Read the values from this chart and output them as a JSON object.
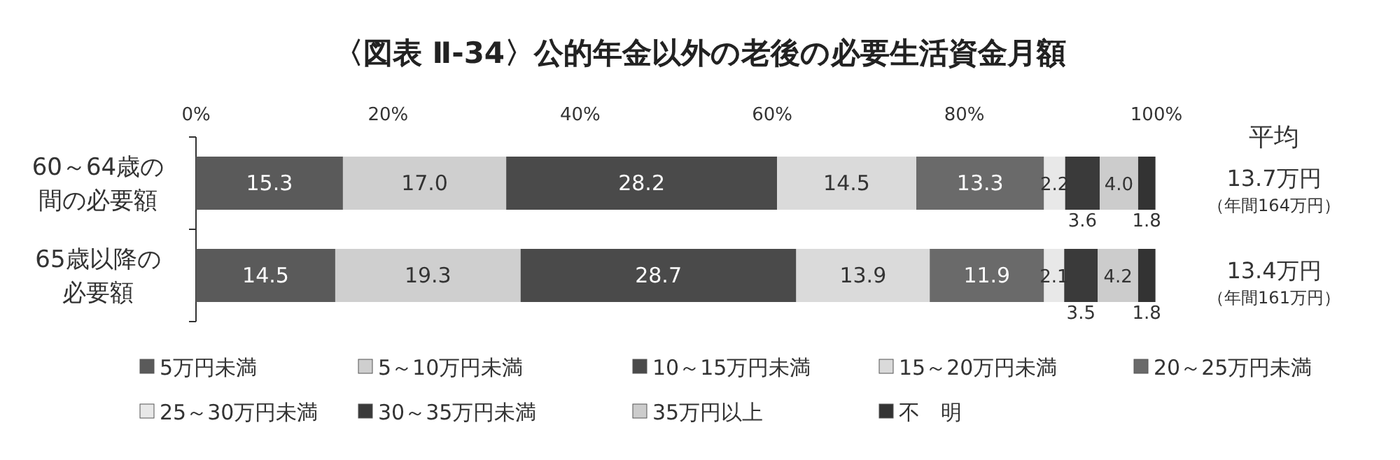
{
  "chart_data": {
    "type": "bar",
    "orientation": "horizontal",
    "stacked": true,
    "title": "〈図表 Ⅱ-34〉公的年金以外の老後の必要生活資金月額",
    "categories": [
      "60～64歳の間の必要額",
      "65歳以降の必要額"
    ],
    "series": [
      {
        "name": "5万円未満",
        "color": "#5a5a5a",
        "values": [
          15.3,
          14.5
        ],
        "value_labels": [
          "15.3",
          "14.5"
        ]
      },
      {
        "name": "5～10万円未満",
        "color": "#cfcfcf",
        "values": [
          17.0,
          19.3
        ],
        "value_labels": [
          "17.0",
          "19.3"
        ]
      },
      {
        "name": "10～15万円未満",
        "color": "#4a4a4a",
        "values": [
          28.2,
          28.7
        ],
        "value_labels": [
          "28.2",
          "28.7"
        ]
      },
      {
        "name": "15～20万円未満",
        "color": "#dadada",
        "values": [
          14.5,
          13.9
        ],
        "value_labels": [
          "14.5",
          "13.9"
        ]
      },
      {
        "name": "20～25万円未満",
        "color": "#6a6a6a",
        "values": [
          13.3,
          11.9
        ],
        "value_labels": [
          "13.3",
          "11.9"
        ]
      },
      {
        "name": "25～30万円未満",
        "color": "#e8e8e8",
        "values": [
          2.2,
          2.1
        ],
        "value_labels": [
          "2.2",
          "2.1"
        ]
      },
      {
        "name": "30～35万円未満",
        "color": "#3a3a3a",
        "values": [
          3.6,
          3.5
        ],
        "value_labels": [
          "3.6",
          "3.5"
        ]
      },
      {
        "name": "35万円以上",
        "color": "#cccccc",
        "values": [
          4.0,
          4.2
        ],
        "value_labels": [
          "4.0",
          "4.2"
        ]
      },
      {
        "name": "不　明",
        "color": "#333333",
        "values": [
          1.8,
          1.8
        ],
        "value_labels": [
          "1.8",
          "1.8"
        ]
      }
    ],
    "xlim": [
      0,
      100
    ],
    "xticks": [
      {
        "value": 0,
        "label": "0%"
      },
      {
        "value": 20,
        "label": "20%"
      },
      {
        "value": 40,
        "label": "40%"
      },
      {
        "value": 60,
        "label": "60%"
      },
      {
        "value": 80,
        "label": "80%"
      },
      {
        "value": 100,
        "label": "100%"
      }
    ],
    "legend": "bottom",
    "data_labels": true,
    "annotations": [
      "平均",
      "13.7万円",
      "（年間164万円）",
      "13.4万円",
      "（年間161万円）"
    ]
  }
}
